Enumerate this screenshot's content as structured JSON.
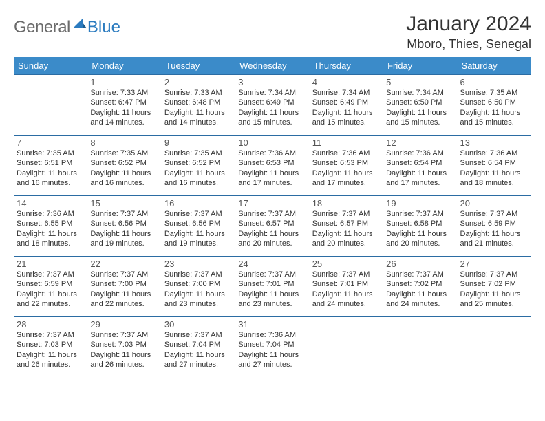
{
  "logo": {
    "text1": "General",
    "text2": "Blue"
  },
  "title": "January 2024",
  "location": "Mboro, Thies, Senegal",
  "headerBg": "#3b8bc9",
  "borderColor": "#2b6ca3",
  "dayNames": [
    "Sunday",
    "Monday",
    "Tuesday",
    "Wednesday",
    "Thursday",
    "Friday",
    "Saturday"
  ],
  "weeks": [
    [
      null,
      {
        "n": "1",
        "sr": "Sunrise: 7:33 AM",
        "ss": "Sunset: 6:47 PM",
        "d1": "Daylight: 11 hours",
        "d2": "and 14 minutes."
      },
      {
        "n": "2",
        "sr": "Sunrise: 7:33 AM",
        "ss": "Sunset: 6:48 PM",
        "d1": "Daylight: 11 hours",
        "d2": "and 14 minutes."
      },
      {
        "n": "3",
        "sr": "Sunrise: 7:34 AM",
        "ss": "Sunset: 6:49 PM",
        "d1": "Daylight: 11 hours",
        "d2": "and 15 minutes."
      },
      {
        "n": "4",
        "sr": "Sunrise: 7:34 AM",
        "ss": "Sunset: 6:49 PM",
        "d1": "Daylight: 11 hours",
        "d2": "and 15 minutes."
      },
      {
        "n": "5",
        "sr": "Sunrise: 7:34 AM",
        "ss": "Sunset: 6:50 PM",
        "d1": "Daylight: 11 hours",
        "d2": "and 15 minutes."
      },
      {
        "n": "6",
        "sr": "Sunrise: 7:35 AM",
        "ss": "Sunset: 6:50 PM",
        "d1": "Daylight: 11 hours",
        "d2": "and 15 minutes."
      }
    ],
    [
      {
        "n": "7",
        "sr": "Sunrise: 7:35 AM",
        "ss": "Sunset: 6:51 PM",
        "d1": "Daylight: 11 hours",
        "d2": "and 16 minutes."
      },
      {
        "n": "8",
        "sr": "Sunrise: 7:35 AM",
        "ss": "Sunset: 6:52 PM",
        "d1": "Daylight: 11 hours",
        "d2": "and 16 minutes."
      },
      {
        "n": "9",
        "sr": "Sunrise: 7:35 AM",
        "ss": "Sunset: 6:52 PM",
        "d1": "Daylight: 11 hours",
        "d2": "and 16 minutes."
      },
      {
        "n": "10",
        "sr": "Sunrise: 7:36 AM",
        "ss": "Sunset: 6:53 PM",
        "d1": "Daylight: 11 hours",
        "d2": "and 17 minutes."
      },
      {
        "n": "11",
        "sr": "Sunrise: 7:36 AM",
        "ss": "Sunset: 6:53 PM",
        "d1": "Daylight: 11 hours",
        "d2": "and 17 minutes."
      },
      {
        "n": "12",
        "sr": "Sunrise: 7:36 AM",
        "ss": "Sunset: 6:54 PM",
        "d1": "Daylight: 11 hours",
        "d2": "and 17 minutes."
      },
      {
        "n": "13",
        "sr": "Sunrise: 7:36 AM",
        "ss": "Sunset: 6:54 PM",
        "d1": "Daylight: 11 hours",
        "d2": "and 18 minutes."
      }
    ],
    [
      {
        "n": "14",
        "sr": "Sunrise: 7:36 AM",
        "ss": "Sunset: 6:55 PM",
        "d1": "Daylight: 11 hours",
        "d2": "and 18 minutes."
      },
      {
        "n": "15",
        "sr": "Sunrise: 7:37 AM",
        "ss": "Sunset: 6:56 PM",
        "d1": "Daylight: 11 hours",
        "d2": "and 19 minutes."
      },
      {
        "n": "16",
        "sr": "Sunrise: 7:37 AM",
        "ss": "Sunset: 6:56 PM",
        "d1": "Daylight: 11 hours",
        "d2": "and 19 minutes."
      },
      {
        "n": "17",
        "sr": "Sunrise: 7:37 AM",
        "ss": "Sunset: 6:57 PM",
        "d1": "Daylight: 11 hours",
        "d2": "and 20 minutes."
      },
      {
        "n": "18",
        "sr": "Sunrise: 7:37 AM",
        "ss": "Sunset: 6:57 PM",
        "d1": "Daylight: 11 hours",
        "d2": "and 20 minutes."
      },
      {
        "n": "19",
        "sr": "Sunrise: 7:37 AM",
        "ss": "Sunset: 6:58 PM",
        "d1": "Daylight: 11 hours",
        "d2": "and 20 minutes."
      },
      {
        "n": "20",
        "sr": "Sunrise: 7:37 AM",
        "ss": "Sunset: 6:59 PM",
        "d1": "Daylight: 11 hours",
        "d2": "and 21 minutes."
      }
    ],
    [
      {
        "n": "21",
        "sr": "Sunrise: 7:37 AM",
        "ss": "Sunset: 6:59 PM",
        "d1": "Daylight: 11 hours",
        "d2": "and 22 minutes."
      },
      {
        "n": "22",
        "sr": "Sunrise: 7:37 AM",
        "ss": "Sunset: 7:00 PM",
        "d1": "Daylight: 11 hours",
        "d2": "and 22 minutes."
      },
      {
        "n": "23",
        "sr": "Sunrise: 7:37 AM",
        "ss": "Sunset: 7:00 PM",
        "d1": "Daylight: 11 hours",
        "d2": "and 23 minutes."
      },
      {
        "n": "24",
        "sr": "Sunrise: 7:37 AM",
        "ss": "Sunset: 7:01 PM",
        "d1": "Daylight: 11 hours",
        "d2": "and 23 minutes."
      },
      {
        "n": "25",
        "sr": "Sunrise: 7:37 AM",
        "ss": "Sunset: 7:01 PM",
        "d1": "Daylight: 11 hours",
        "d2": "and 24 minutes."
      },
      {
        "n": "26",
        "sr": "Sunrise: 7:37 AM",
        "ss": "Sunset: 7:02 PM",
        "d1": "Daylight: 11 hours",
        "d2": "and 24 minutes."
      },
      {
        "n": "27",
        "sr": "Sunrise: 7:37 AM",
        "ss": "Sunset: 7:02 PM",
        "d1": "Daylight: 11 hours",
        "d2": "and 25 minutes."
      }
    ],
    [
      {
        "n": "28",
        "sr": "Sunrise: 7:37 AM",
        "ss": "Sunset: 7:03 PM",
        "d1": "Daylight: 11 hours",
        "d2": "and 26 minutes."
      },
      {
        "n": "29",
        "sr": "Sunrise: 7:37 AM",
        "ss": "Sunset: 7:03 PM",
        "d1": "Daylight: 11 hours",
        "d2": "and 26 minutes."
      },
      {
        "n": "30",
        "sr": "Sunrise: 7:37 AM",
        "ss": "Sunset: 7:04 PM",
        "d1": "Daylight: 11 hours",
        "d2": "and 27 minutes."
      },
      {
        "n": "31",
        "sr": "Sunrise: 7:36 AM",
        "ss": "Sunset: 7:04 PM",
        "d1": "Daylight: 11 hours",
        "d2": "and 27 minutes."
      },
      null,
      null,
      null
    ]
  ]
}
